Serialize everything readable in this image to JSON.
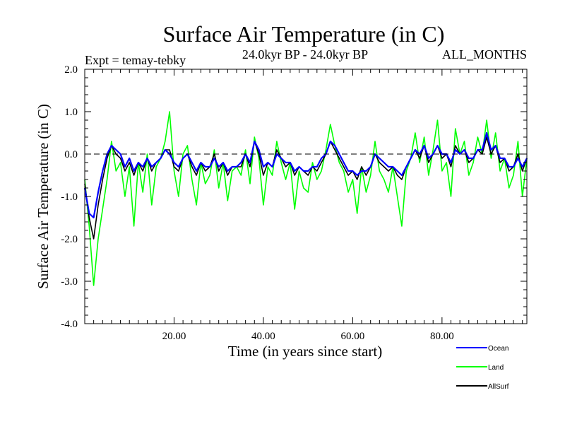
{
  "chart_data": {
    "type": "line",
    "title": "Surface Air Temperature (in C)",
    "subtitle": "24.0kyr BP - 24.0kyr BP",
    "left_label": "Expt = temay-tebky",
    "right_label": "ALL_MONTHS",
    "xlabel": "Time (in years since start)",
    "ylabel": "Surface Air Temperature (in C)",
    "xlim": [
      0,
      99
    ],
    "ylim": [
      -4.0,
      2.0
    ],
    "x_ticks": [
      20,
      40,
      60,
      80
    ],
    "x_tick_labels": [
      "20.00",
      "40.00",
      "60.00",
      "80.00"
    ],
    "y_ticks": [
      -4,
      -3,
      -2,
      -1,
      0,
      1,
      2
    ],
    "y_tick_labels": [
      "-4.0",
      "-3.0",
      "-2.0",
      "-1.0",
      "0.0",
      "1.0",
      "2.0"
    ],
    "reference_line": {
      "y": 0.0,
      "style": "dashed"
    },
    "legend_position": "bottom-right",
    "series": [
      {
        "name": "Land",
        "color": "#00ff00",
        "x": [
          0,
          1,
          2,
          3,
          4,
          5,
          6,
          7,
          8,
          9,
          10,
          11,
          12,
          13,
          14,
          15,
          16,
          17,
          18,
          19,
          20,
          21,
          22,
          23,
          24,
          25,
          26,
          27,
          28,
          29,
          30,
          31,
          32,
          33,
          34,
          35,
          36,
          37,
          38,
          39,
          40,
          41,
          42,
          43,
          44,
          45,
          46,
          47,
          48,
          49,
          50,
          51,
          52,
          53,
          54,
          55,
          56,
          57,
          58,
          59,
          60,
          61,
          62,
          63,
          64,
          65,
          66,
          67,
          68,
          69,
          70,
          71,
          72,
          73,
          74,
          75,
          76,
          77,
          78,
          79,
          80,
          81,
          82,
          83,
          84,
          85,
          86,
          87,
          88,
          89,
          90,
          91,
          92,
          93,
          94,
          95,
          96,
          97,
          98,
          99
        ],
        "values": [
          -0.6,
          -1.7,
          -3.1,
          -2.0,
          -1.3,
          -0.6,
          0.3,
          -0.4,
          -0.2,
          -1.0,
          -0.3,
          -1.7,
          -0.2,
          -0.9,
          0.0,
          -1.2,
          -0.3,
          -0.1,
          0.3,
          1.0,
          -0.4,
          -1.0,
          0.0,
          0.2,
          -0.6,
          -1.2,
          -0.2,
          -0.7,
          -0.5,
          0.1,
          -0.8,
          -0.2,
          -1.1,
          -0.4,
          -0.3,
          -0.5,
          0.1,
          -0.7,
          0.4,
          -0.1,
          -1.2,
          -0.3,
          -0.5,
          0.3,
          -0.2,
          -0.6,
          -0.2,
          -1.3,
          -0.4,
          -0.8,
          -0.9,
          -0.2,
          -0.6,
          -0.4,
          0.1,
          0.7,
          0.2,
          -0.2,
          -0.4,
          -0.9,
          -0.6,
          -1.4,
          -0.3,
          -0.9,
          -0.5,
          0.3,
          -0.4,
          -0.6,
          -0.9,
          -0.3,
          -1.0,
          -1.7,
          -0.4,
          -0.1,
          0.5,
          -0.2,
          0.4,
          -0.5,
          0.1,
          0.8,
          -0.4,
          -0.2,
          -1.0,
          0.6,
          0.0,
          0.3,
          -0.5,
          -0.2,
          0.4,
          0.0,
          0.8,
          -0.1,
          0.5,
          -0.4,
          -0.1,
          -0.8,
          -0.5,
          0.3,
          -1.0,
          -0.1
        ]
      },
      {
        "name": "AllSurf",
        "color": "#000000",
        "x": [
          0,
          1,
          2,
          3,
          4,
          5,
          6,
          7,
          8,
          9,
          10,
          11,
          12,
          13,
          14,
          15,
          16,
          17,
          18,
          19,
          20,
          21,
          22,
          23,
          24,
          25,
          26,
          27,
          28,
          29,
          30,
          31,
          32,
          33,
          34,
          35,
          36,
          37,
          38,
          39,
          40,
          41,
          42,
          43,
          44,
          45,
          46,
          47,
          48,
          49,
          50,
          51,
          52,
          53,
          54,
          55,
          56,
          57,
          58,
          59,
          60,
          61,
          62,
          63,
          64,
          65,
          66,
          67,
          68,
          69,
          70,
          71,
          72,
          73,
          74,
          75,
          76,
          77,
          78,
          79,
          80,
          81,
          82,
          83,
          84,
          85,
          86,
          87,
          88,
          89,
          90,
          91,
          92,
          93,
          94,
          95,
          96,
          97,
          98,
          99
        ],
        "values": [
          -0.7,
          -1.5,
          -2.0,
          -1.2,
          -0.6,
          -0.1,
          0.2,
          0.0,
          -0.1,
          -0.4,
          -0.2,
          -0.5,
          -0.2,
          -0.4,
          -0.1,
          -0.4,
          -0.2,
          -0.1,
          0.1,
          0.1,
          -0.3,
          -0.4,
          -0.1,
          0.0,
          -0.3,
          -0.5,
          -0.2,
          -0.4,
          -0.3,
          0.0,
          -0.4,
          -0.2,
          -0.5,
          -0.3,
          -0.3,
          -0.3,
          0.0,
          -0.3,
          0.3,
          0.0,
          -0.5,
          -0.2,
          -0.3,
          0.1,
          -0.1,
          -0.3,
          -0.2,
          -0.5,
          -0.3,
          -0.4,
          -0.5,
          -0.3,
          -0.4,
          -0.2,
          0.0,
          0.3,
          0.1,
          -0.1,
          -0.3,
          -0.5,
          -0.4,
          -0.6,
          -0.3,
          -0.5,
          -0.3,
          0.0,
          -0.2,
          -0.3,
          -0.4,
          -0.3,
          -0.5,
          -0.6,
          -0.3,
          -0.1,
          0.1,
          -0.1,
          0.2,
          -0.2,
          0.0,
          0.2,
          -0.1,
          0.0,
          -0.3,
          0.2,
          0.0,
          0.1,
          -0.2,
          -0.1,
          0.1,
          0.0,
          0.4,
          0.0,
          0.2,
          -0.2,
          -0.1,
          -0.4,
          -0.3,
          0.0,
          -0.4,
          -0.1
        ]
      },
      {
        "name": "Ocean",
        "color": "#0000ff",
        "x": [
          0,
          1,
          2,
          3,
          4,
          5,
          6,
          7,
          8,
          9,
          10,
          11,
          12,
          13,
          14,
          15,
          16,
          17,
          18,
          19,
          20,
          21,
          22,
          23,
          24,
          25,
          26,
          27,
          28,
          29,
          30,
          31,
          32,
          33,
          34,
          35,
          36,
          37,
          38,
          39,
          40,
          41,
          42,
          43,
          44,
          45,
          46,
          47,
          48,
          49,
          50,
          51,
          52,
          53,
          54,
          55,
          56,
          57,
          58,
          59,
          60,
          61,
          62,
          63,
          64,
          65,
          66,
          67,
          68,
          69,
          70,
          71,
          72,
          73,
          74,
          75,
          76,
          77,
          78,
          79,
          80,
          81,
          82,
          83,
          84,
          85,
          86,
          87,
          88,
          89,
          90,
          91,
          92,
          93,
          94,
          95,
          96,
          97,
          98,
          99
        ],
        "values": [
          -0.8,
          -1.4,
          -1.5,
          -0.9,
          -0.4,
          0.0,
          0.2,
          0.1,
          0.0,
          -0.3,
          -0.1,
          -0.4,
          -0.2,
          -0.3,
          -0.1,
          -0.3,
          -0.2,
          -0.1,
          0.1,
          0.0,
          -0.2,
          -0.3,
          -0.1,
          0.0,
          -0.2,
          -0.4,
          -0.2,
          -0.3,
          -0.3,
          -0.1,
          -0.3,
          -0.2,
          -0.4,
          -0.3,
          -0.3,
          -0.2,
          0.0,
          -0.2,
          0.3,
          0.1,
          -0.3,
          -0.2,
          -0.3,
          0.0,
          -0.1,
          -0.2,
          -0.2,
          -0.4,
          -0.3,
          -0.4,
          -0.4,
          -0.3,
          -0.3,
          -0.1,
          0.0,
          0.3,
          0.2,
          0.0,
          -0.2,
          -0.4,
          -0.4,
          -0.5,
          -0.4,
          -0.4,
          -0.3,
          0.0,
          -0.1,
          -0.2,
          -0.3,
          -0.3,
          -0.4,
          -0.5,
          -0.3,
          -0.1,
          0.1,
          0.0,
          0.2,
          -0.1,
          0.0,
          0.2,
          0.0,
          0.0,
          -0.2,
          0.1,
          0.0,
          0.1,
          -0.1,
          -0.1,
          0.1,
          0.1,
          0.5,
          0.1,
          0.2,
          -0.1,
          -0.1,
          -0.3,
          -0.3,
          -0.1,
          -0.3,
          -0.1
        ]
      }
    ],
    "legend": [
      {
        "name": "Ocean",
        "color": "#0000ff"
      },
      {
        "name": "Land",
        "color": "#00ff00"
      },
      {
        "name": "AllSurf",
        "color": "#000000"
      }
    ]
  }
}
